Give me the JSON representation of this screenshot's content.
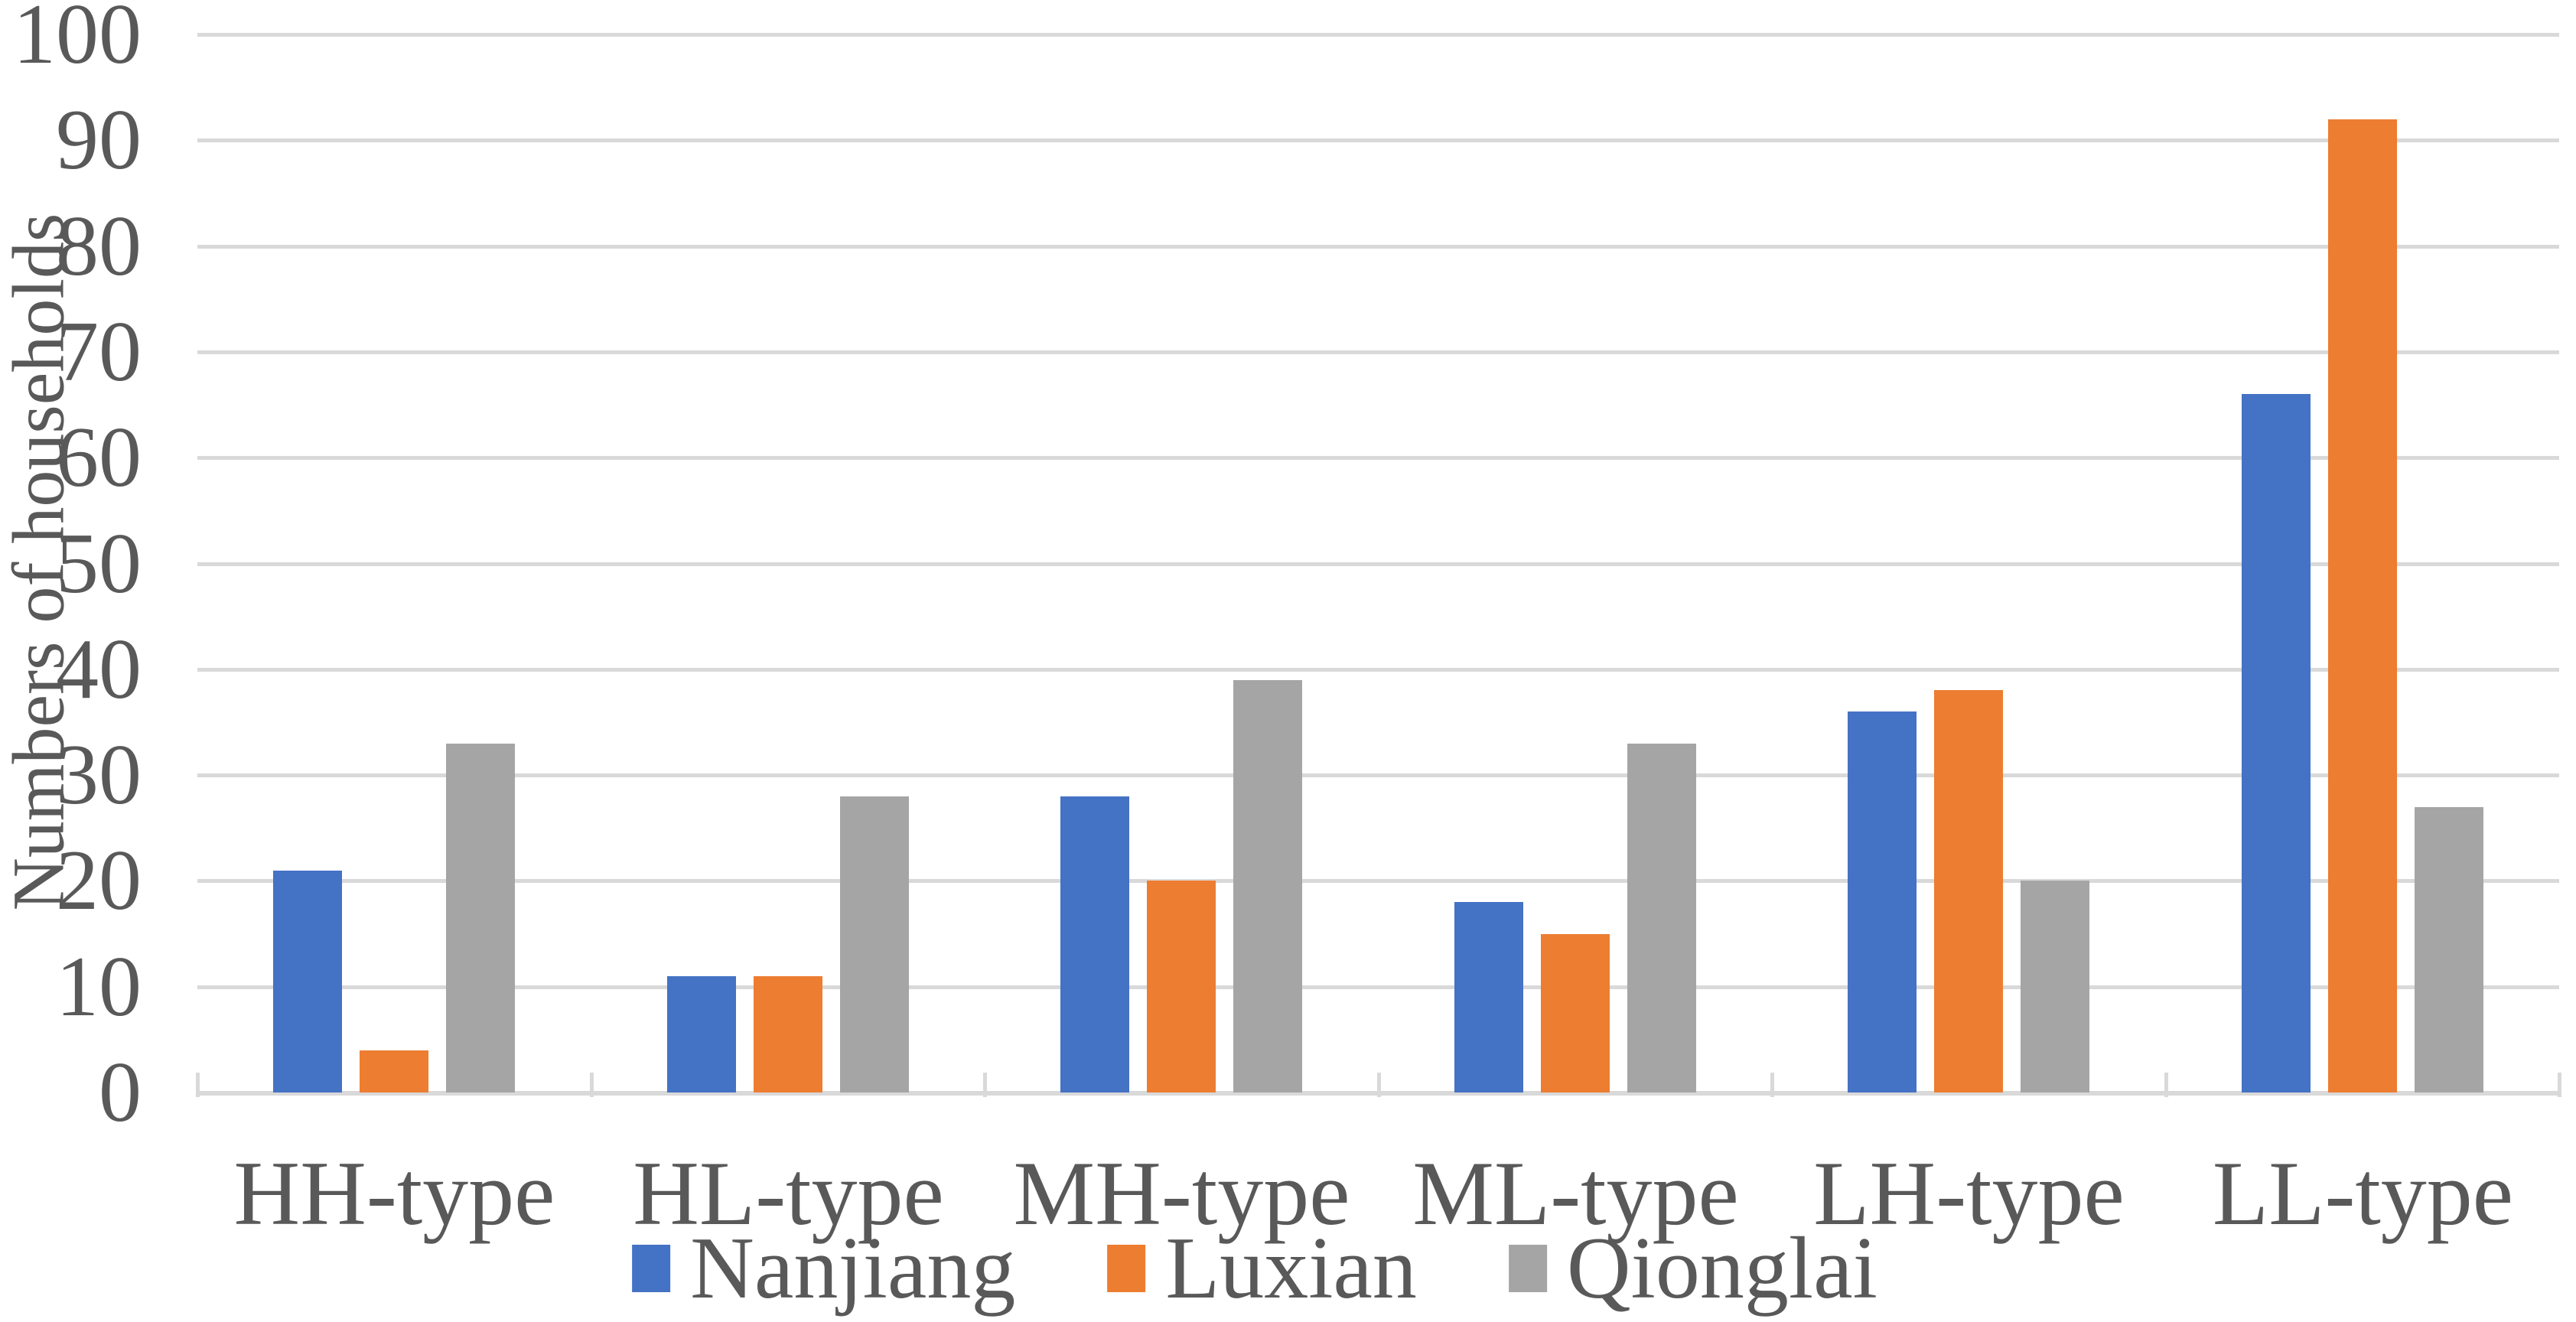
{
  "chart_data": {
    "type": "bar",
    "title": "",
    "xlabel": "",
    "ylabel": "Numbers of households",
    "categories": [
      "HH-type",
      "HL-type",
      "MH-type",
      "ML-type",
      "LH-type",
      "LL-type"
    ],
    "series": [
      {
        "name": "Nanjiang",
        "color": "#4472C4",
        "values": [
          21,
          11,
          28,
          18,
          36,
          66
        ]
      },
      {
        "name": "Luxian",
        "color": "#ED7D31",
        "values": [
          4,
          11,
          20,
          15,
          38,
          92
        ]
      },
      {
        "name": "Qionglai",
        "color": "#A5A5A5",
        "values": [
          33,
          28,
          39,
          33,
          20,
          27
        ]
      }
    ],
    "ylim": [
      0,
      100
    ],
    "ytick_step": 10,
    "ytick_labels": [
      "0",
      "10",
      "20",
      "30",
      "40",
      "50",
      "60",
      "70",
      "80",
      "90",
      "100"
    ],
    "grid": true,
    "legend_position": "bottom",
    "gridline_color": "#D9D9D9",
    "axis_line_color": "#D9D9D9",
    "text_color": "#595959",
    "background_color": "#FFFFFF"
  }
}
